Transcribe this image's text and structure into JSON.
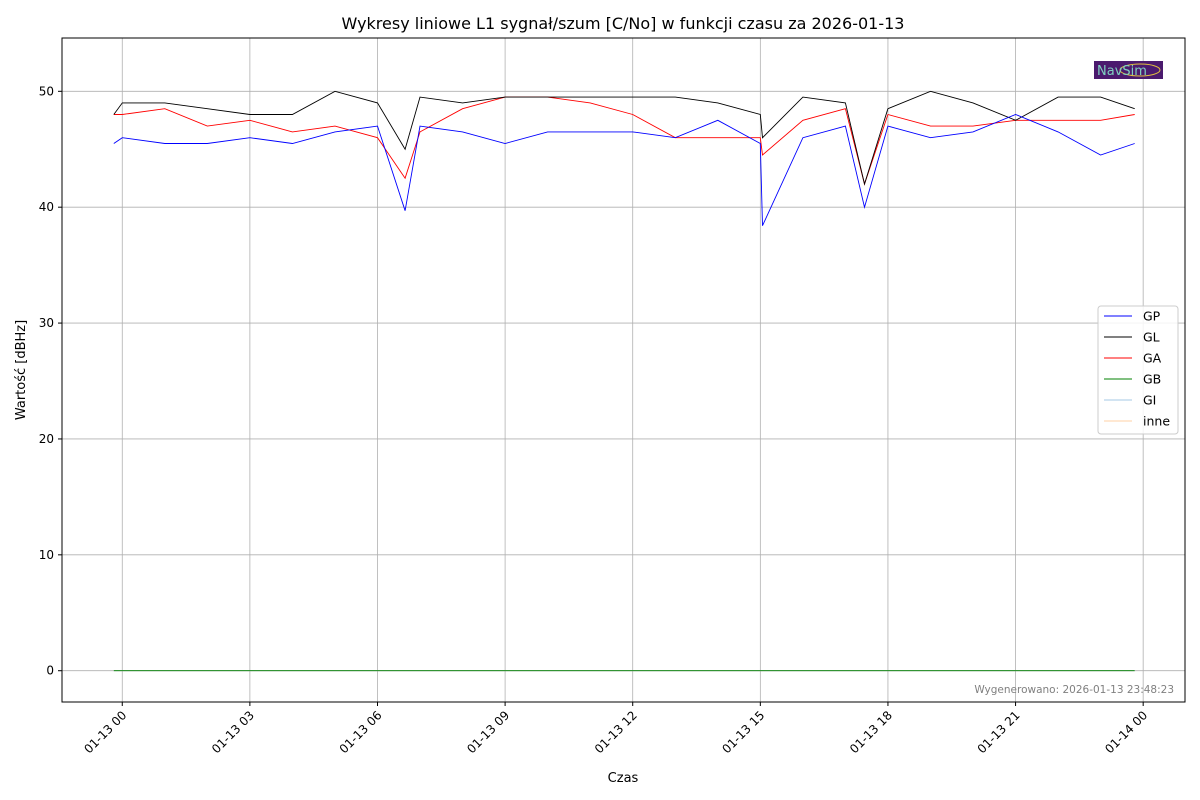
{
  "chart_data": {
    "type": "line",
    "title": "Wykresy liniowe L1 sygnał/szum [C/No] w funkcji czasu za 2026-01-13",
    "xlabel": "Czas",
    "ylabel": "Wartość [dBHz]",
    "ylim": [
      -2.7,
      54.6
    ],
    "xlim": [
      "2026-01-12 22:35",
      "2026-01-14 00:59"
    ],
    "grid": true,
    "legend_placement": "center-right",
    "yticks": [
      0,
      10,
      20,
      30,
      40,
      50
    ],
    "xticks": [
      {
        "t": "2026-01-13 00:00",
        "label": "01-13 00"
      },
      {
        "t": "2026-01-13 03:00",
        "label": "01-13 03"
      },
      {
        "t": "2026-01-13 06:00",
        "label": "01-13 06"
      },
      {
        "t": "2026-01-13 09:00",
        "label": "01-13 09"
      },
      {
        "t": "2026-01-13 12:00",
        "label": "01-13 12"
      },
      {
        "t": "2026-01-13 15:00",
        "label": "01-13 15"
      },
      {
        "t": "2026-01-13 18:00",
        "label": "01-13 18"
      },
      {
        "t": "2026-01-13 21:00",
        "label": "01-13 21"
      },
      {
        "t": "2026-01-14 00:00",
        "label": "01-14 00"
      }
    ],
    "x": [
      "2026-01-12 23:48",
      "2026-01-13 00:00",
      "2026-01-13 01:00",
      "2026-01-13 02:00",
      "2026-01-13 03:00",
      "2026-01-13 04:00",
      "2026-01-13 05:00",
      "2026-01-13 06:00",
      "2026-01-13 06:39",
      "2026-01-13 07:00",
      "2026-01-13 08:00",
      "2026-01-13 09:00",
      "2026-01-13 10:00",
      "2026-01-13 11:00",
      "2026-01-13 12:00",
      "2026-01-13 13:00",
      "2026-01-13 14:00",
      "2026-01-13 15:00",
      "2026-01-13 15:03",
      "2026-01-13 16:00",
      "2026-01-13 17:00",
      "2026-01-13 17:27",
      "2026-01-13 18:00",
      "2026-01-13 19:00",
      "2026-01-13 20:00",
      "2026-01-13 21:00",
      "2026-01-13 22:00",
      "2026-01-13 23:00",
      "2026-01-13 23:48"
    ],
    "series": [
      {
        "name": "GP",
        "color": "#0000ff",
        "values": [
          45.5,
          46,
          45.5,
          45.5,
          46,
          45.5,
          46.5,
          47,
          39.7,
          47,
          46.5,
          45.5,
          46.5,
          46.5,
          46.5,
          46,
          47.5,
          45.5,
          38.4,
          46,
          47,
          40,
          47,
          46,
          46.5,
          48,
          46.5,
          44.5,
          45.5
        ]
      },
      {
        "name": "GL",
        "color": "#000000",
        "values": [
          48,
          49,
          49,
          48.5,
          48,
          48,
          50,
          49,
          45,
          49.5,
          49,
          49.5,
          49.5,
          49.5,
          49.5,
          49.5,
          49,
          48,
          46,
          49.5,
          49,
          42,
          48.5,
          50,
          49,
          47.5,
          49.5,
          49.5,
          48.5
        ]
      },
      {
        "name": "GA",
        "color": "#ff0000",
        "values": [
          48,
          48,
          48.5,
          47,
          47.5,
          46.5,
          47,
          46,
          42.5,
          46.5,
          48.5,
          49.5,
          49.5,
          49,
          48,
          46,
          46,
          46,
          44.5,
          47.5,
          48.5,
          42,
          48,
          47,
          47,
          47.5,
          47.5,
          47.5,
          48
        ]
      },
      {
        "name": "GB",
        "color": "#008000",
        "values": [
          0,
          0,
          0,
          0,
          0,
          0,
          0,
          0,
          0,
          0,
          0,
          0,
          0,
          0,
          0,
          0,
          0,
          0,
          0,
          0,
          0,
          0,
          0,
          0,
          0,
          0,
          0,
          0,
          0
        ]
      },
      {
        "name": "GI",
        "color": "#a6c8e6",
        "values": [
          0,
          0,
          0,
          0,
          0,
          0,
          0,
          0,
          0,
          0,
          0,
          0,
          0,
          0,
          0,
          0,
          0,
          0,
          0,
          0,
          0,
          0,
          0,
          0,
          0,
          0,
          0,
          0,
          0
        ]
      },
      {
        "name": "inne",
        "color": "#ffd2a6",
        "values": [
          0,
          0,
          0,
          0,
          0,
          0,
          0,
          0,
          0,
          0,
          0,
          0,
          0,
          0,
          0,
          0,
          0,
          0,
          0,
          0,
          0,
          0,
          0,
          0,
          0,
          0,
          0,
          0,
          0
        ]
      }
    ],
    "annotation": "Wygenerowano: 2026-01-13 23:48:23"
  },
  "logo": {
    "text": "NavSim",
    "bg": "#4b1a6e",
    "fg": "#7fd0c0"
  }
}
